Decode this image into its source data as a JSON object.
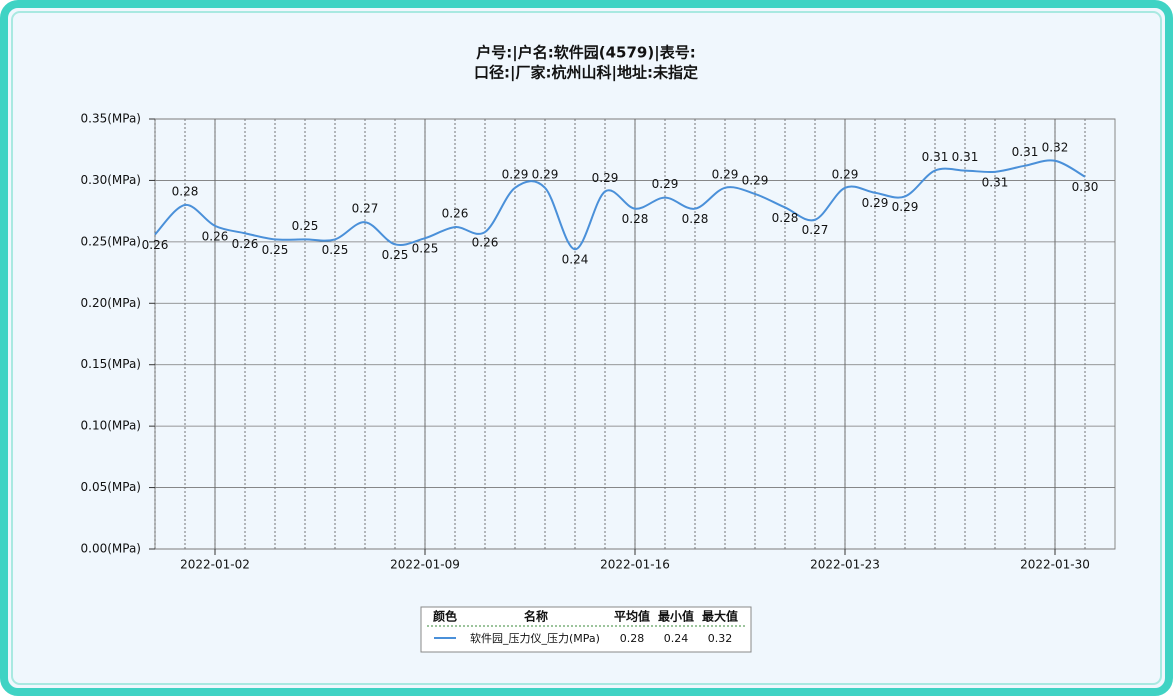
{
  "chart_data": {
    "type": "line",
    "title": [
      "户号:|户名:软件园(4579)|表号:",
      "口径:|厂家:杭州山科|地址:未指定"
    ],
    "x": [
      "2021-12-31",
      "2022-01-01",
      "2022-01-02",
      "2022-01-03",
      "2022-01-04",
      "2022-01-05",
      "2022-01-06",
      "2022-01-07",
      "2022-01-08",
      "2022-01-09",
      "2022-01-10",
      "2022-01-11",
      "2022-01-12",
      "2022-01-13",
      "2022-01-14",
      "2022-01-15",
      "2022-01-16",
      "2022-01-17",
      "2022-01-18",
      "2022-01-19",
      "2022-01-20",
      "2022-01-21",
      "2022-01-22",
      "2022-01-23",
      "2022-01-24",
      "2022-01-25",
      "2022-01-26",
      "2022-01-27",
      "2022-01-28",
      "2022-01-29",
      "2022-01-30",
      "2022-01-31"
    ],
    "series": [
      {
        "name": "软件园_压力仪_压力(MPa)",
        "color": "#4a90d9",
        "values": [
          0.256,
          0.28,
          0.263,
          0.257,
          0.252,
          0.252,
          0.252,
          0.266,
          0.248,
          0.253,
          0.262,
          0.258,
          0.294,
          0.294,
          0.244,
          0.291,
          0.277,
          0.286,
          0.277,
          0.294,
          0.289,
          0.278,
          0.268,
          0.294,
          0.29,
          0.287,
          0.308,
          0.308,
          0.307,
          0.312,
          0.316,
          0.303
        ],
        "value_labels": [
          "0.26",
          "0.28",
          "0.26",
          "0.26",
          "0.25",
          "0.25",
          "0.25",
          "0.27",
          "0.25",
          "0.25",
          "0.26",
          "0.26",
          "0.29",
          "0.29",
          "0.24",
          "0.29",
          "0.28",
          "0.29",
          "0.28",
          "0.29",
          "0.29",
          "0.28",
          "0.27",
          "0.29",
          "0.29",
          "0.29",
          "0.31",
          "0.31",
          "0.31",
          "0.31",
          "0.32",
          "0.30"
        ]
      }
    ],
    "xlim": [
      "2021-12-31",
      "2022-02-01"
    ],
    "xticks": [
      "2022-01-02",
      "2022-01-09",
      "2022-01-16",
      "2022-01-23",
      "2022-01-30"
    ],
    "ylim": [
      0,
      0.35
    ],
    "yticks": [
      {
        "value": 0,
        "label": "0.00(MPa)"
      },
      {
        "value": 0.05,
        "label": "0.05(MPa)"
      },
      {
        "value": 0.1,
        "label": "0.10(MPa)"
      },
      {
        "value": 0.15,
        "label": "0.15(MPa)"
      },
      {
        "value": 0.2,
        "label": "0.20(MPa)"
      },
      {
        "value": 0.25,
        "label": "0.25(MPa)"
      },
      {
        "value": 0.3,
        "label": "0.30(MPa)"
      },
      {
        "value": 0.35,
        "label": "0.35(MPa)"
      }
    ],
    "grid": true,
    "legend": {
      "headers": [
        "颜色",
        "名称",
        "平均值",
        "最小值",
        "最大值"
      ],
      "average": 0.28,
      "min": 0.24,
      "max": 0.32
    }
  }
}
